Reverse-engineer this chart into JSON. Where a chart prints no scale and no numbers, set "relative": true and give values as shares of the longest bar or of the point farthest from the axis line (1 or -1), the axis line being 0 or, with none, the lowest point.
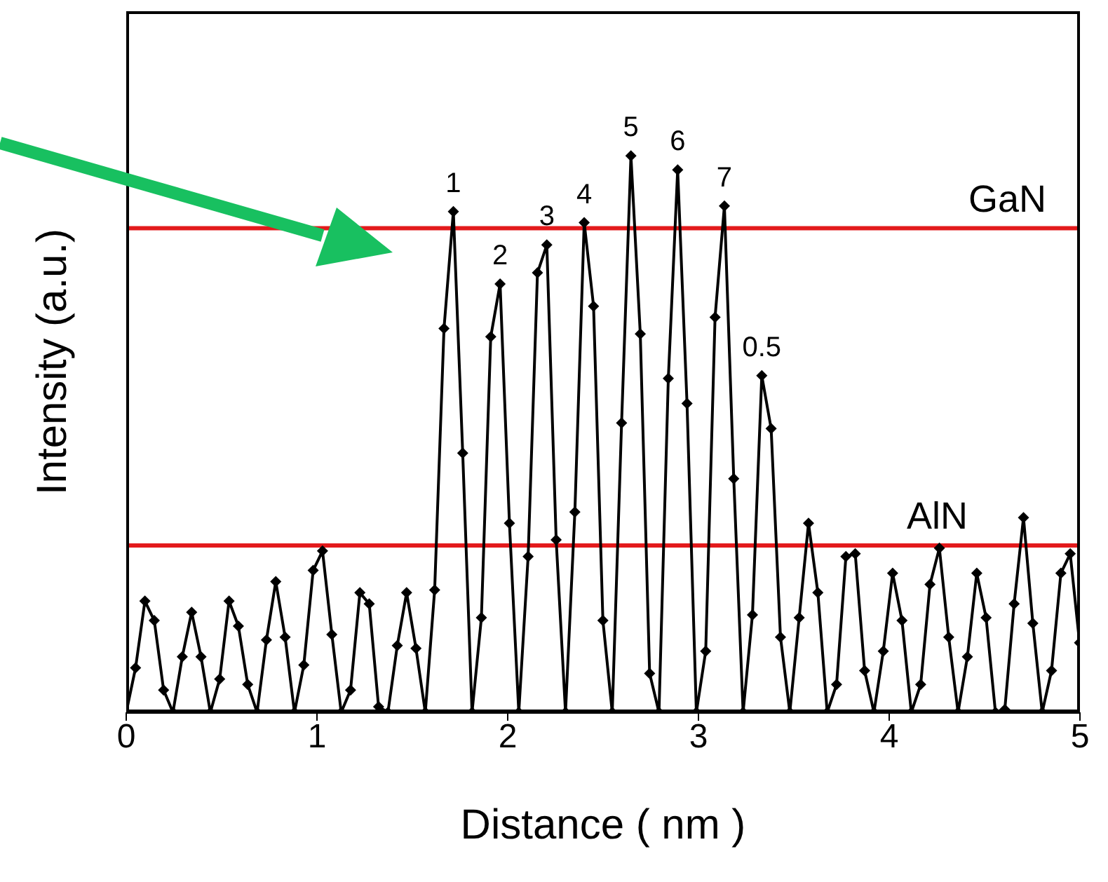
{
  "chart_data": {
    "type": "line",
    "xlabel": "Distance ( nm )",
    "ylabel": "Intensity (a.u.)",
    "relative": true,
    "xlim": [
      0,
      5
    ],
    "xticks": [
      0,
      1,
      2,
      3,
      4,
      5
    ],
    "marker": "diamond",
    "line_style": "solid",
    "x": [
      0,
      0.049,
      0.098,
      0.147,
      0.196,
      0.245,
      0.294,
      0.343,
      0.392,
      0.441,
      0.49,
      0.539,
      0.588,
      0.637,
      0.686,
      0.735,
      0.784,
      0.833,
      0.882,
      0.931,
      0.98,
      1.029,
      1.078,
      1.127,
      1.176,
      1.225,
      1.274,
      1.323,
      1.372,
      1.421,
      1.47,
      1.519,
      1.568,
      1.617,
      1.666,
      1.715,
      1.764,
      1.813,
      1.862,
      1.911,
      1.96,
      2.009,
      2.058,
      2.107,
      2.156,
      2.205,
      2.254,
      2.303,
      2.352,
      2.401,
      2.45,
      2.499,
      2.548,
      2.597,
      2.646,
      2.695,
      2.744,
      2.793,
      2.842,
      2.891,
      2.94,
      2.989,
      3.038,
      3.087,
      3.136,
      3.185,
      3.234,
      3.283,
      3.332,
      3.381,
      3.43,
      3.479,
      3.528,
      3.577,
      3.626,
      3.675,
      3.724,
      3.773,
      3.822,
      3.871,
      3.92,
      3.969,
      4.018,
      4.067,
      4.116,
      4.165,
      4.214,
      4.263,
      4.312,
      4.361,
      4.41,
      4.459,
      4.508,
      4.557,
      4.606,
      4.655,
      4.704,
      4.753,
      4.802,
      4.851,
      4.9,
      4.949,
      4.998
    ],
    "series": [
      {
        "color": "#000000",
        "values": [
          0,
          0.08,
          0.2,
          0.165,
          0.04,
          0,
          0.1,
          0.18,
          0.1,
          0,
          0.06,
          0.2,
          0.155,
          0.05,
          0,
          0.13,
          0.235,
          0.135,
          0,
          0.085,
          0.255,
          0.29,
          0.14,
          0,
          0.04,
          0.215,
          0.195,
          0.01,
          0,
          0.12,
          0.215,
          0.115,
          0,
          0.22,
          0.69,
          0.9,
          0.466,
          0,
          0.17,
          0.675,
          0.77,
          0.34,
          0,
          0.28,
          0.79,
          0.84,
          0.31,
          0,
          0.36,
          0.88,
          0.73,
          0.165,
          0,
          0.52,
          1.0,
          0.68,
          0.07,
          0,
          0.6,
          0.975,
          0.555,
          0,
          0.11,
          0.71,
          0.91,
          0.42,
          0,
          0.175,
          0.605,
          0.51,
          0.135,
          0,
          0.17,
          0.34,
          0.215,
          0,
          0.05,
          0.28,
          0.285,
          0.075,
          0,
          0.11,
          0.25,
          0.165,
          0,
          0.05,
          0.23,
          0.295,
          0.135,
          0,
          0.1,
          0.25,
          0.17,
          0,
          0.005,
          0.195,
          0.35,
          0.16,
          0,
          0.075,
          0.25,
          0.285,
          0.125
        ]
      }
    ],
    "ref_lines": [
      {
        "axis": "y",
        "value": 0.87,
        "label": "GaN",
        "color": "#e31a1c"
      },
      {
        "axis": "y",
        "value": 0.3,
        "label": "AlN",
        "color": "#e31a1c"
      }
    ],
    "annotations": [
      {
        "text": "1",
        "x": 1.715,
        "y": 0.9
      },
      {
        "text": "2",
        "x": 1.96,
        "y": 0.77
      },
      {
        "text": "3",
        "x": 2.205,
        "y": 0.84
      },
      {
        "text": "4",
        "x": 2.401,
        "y": 0.88
      },
      {
        "text": "5",
        "x": 2.646,
        "y": 1.0
      },
      {
        "text": "6",
        "x": 2.891,
        "y": 0.975
      },
      {
        "text": "7",
        "x": 3.136,
        "y": 0.91
      },
      {
        "text": "0.5",
        "x": 3.332,
        "y": 0.605
      }
    ]
  }
}
